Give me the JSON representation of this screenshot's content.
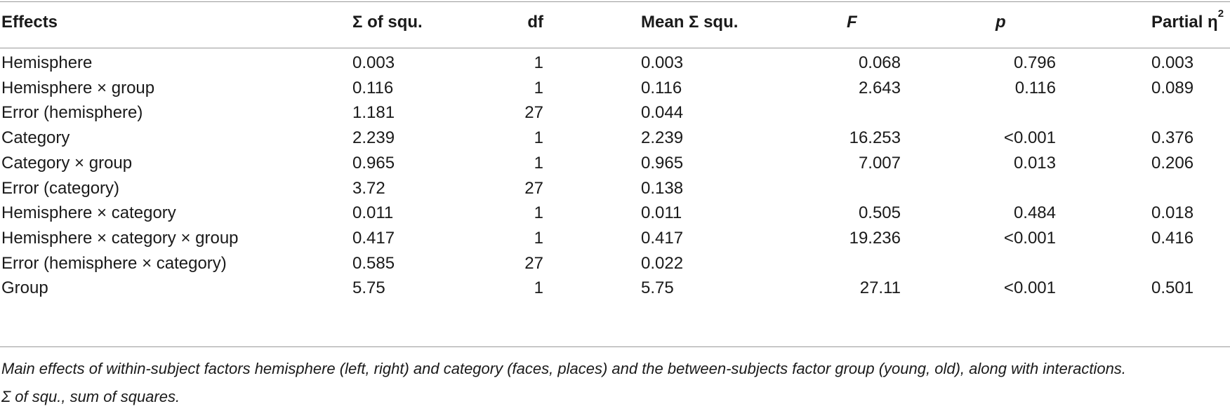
{
  "table": {
    "headers": {
      "effects": "Effects",
      "sum_squares": "Σ of squ.",
      "df": "df",
      "mean_squares": "Mean Σ squ.",
      "f": "F",
      "p": "p",
      "partial_eta": "Partial η",
      "partial_eta_sup": "2"
    },
    "rows": [
      {
        "effect": "Hemisphere",
        "ss": "0.003",
        "df": "1",
        "ms": "0.003",
        "f": "0.068",
        "p": "0.796",
        "eta": "0.003"
      },
      {
        "effect": "Hemisphere × group",
        "ss": "0.116",
        "df": "1",
        "ms": "0.116",
        "f": "2.643",
        "p": "0.116",
        "eta": "0.089"
      },
      {
        "effect": "Error (hemisphere)",
        "ss": "1.181",
        "df": "27",
        "ms": "0.044",
        "f": "",
        "p": "",
        "eta": ""
      },
      {
        "effect": "Category",
        "ss": "2.239",
        "df": "1",
        "ms": "2.239",
        "f": "16.253",
        "p": "<0.001",
        "eta": "0.376"
      },
      {
        "effect": "Category × group",
        "ss": "0.965",
        "df": "1",
        "ms": "0.965",
        "f": "7.007",
        "p": "0.013",
        "eta": "0.206"
      },
      {
        "effect": "Error (category)",
        "ss": "3.72",
        "df": "27",
        "ms": "0.138",
        "f": "",
        "p": "",
        "eta": ""
      },
      {
        "effect": "Hemisphere × category",
        "ss": "0.011",
        "df": "1",
        "ms": "0.011",
        "f": "0.505",
        "p": "0.484",
        "eta": "0.018"
      },
      {
        "effect": "Hemisphere × category × group",
        "ss": "0.417",
        "df": "1",
        "ms": "0.417",
        "f": "19.236",
        "p": "<0.001",
        "eta": "0.416"
      },
      {
        "effect": "Error (hemisphere × category)",
        "ss": "0.585",
        "df": "27",
        "ms": "0.022",
        "f": "",
        "p": "",
        "eta": ""
      },
      {
        "effect": "Group",
        "ss": "5.75",
        "df": "1",
        "ms": "5.75",
        "f": "27.11",
        "p": "<0.001",
        "eta": "0.501"
      }
    ]
  },
  "caption": {
    "line1": "Main effects of within-subject factors hemisphere (left, right) and category (faces, places) and the between-subjects factor group (young, old), along with interactions.",
    "line2": "Σ of squ., sum of squares."
  }
}
